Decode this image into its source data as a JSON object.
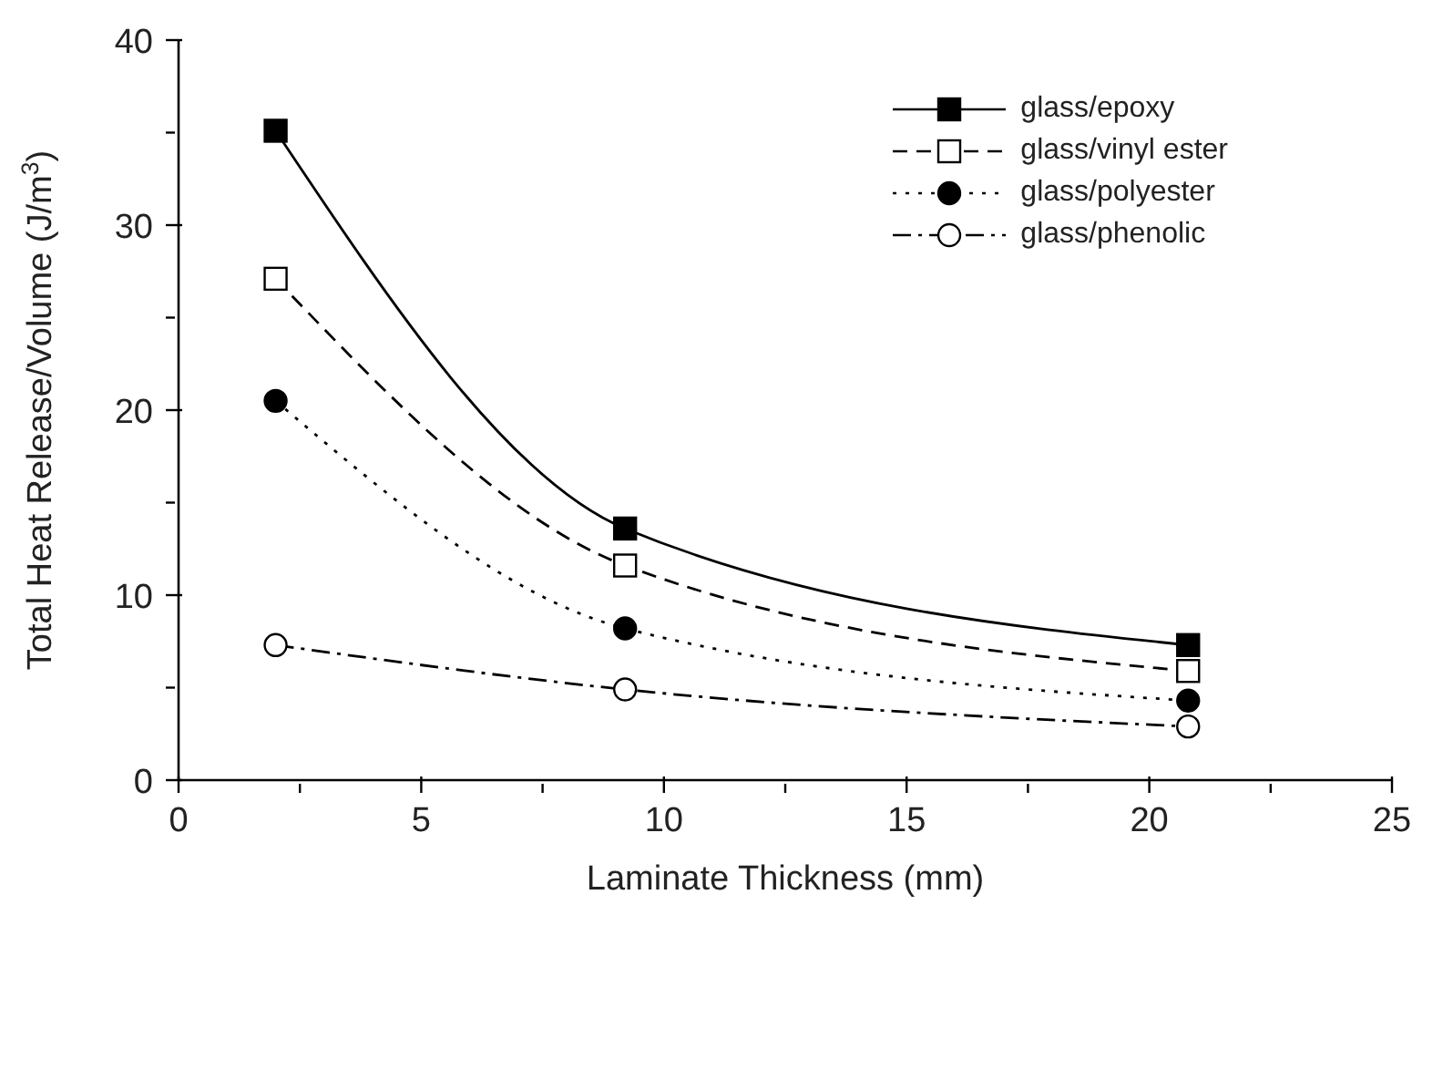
{
  "chart_data": {
    "type": "line",
    "xlabel": "Laminate Thickness (mm)",
    "ylabel": "Total Heat Release/Volume (J/m$^{3}$)",
    "xlim": [
      0,
      25
    ],
    "ylim": [
      0,
      40
    ],
    "xticks": [
      0,
      {
        "value": 2.5,
        "label": null
      },
      5,
      {
        "value": 7.5,
        "label": null
      },
      10,
      {
        "value": 12.5,
        "label": null
      },
      15,
      {
        "value": 17.5,
        "label": null
      },
      20,
      {
        "value": 22.5,
        "label": null
      },
      25
    ],
    "yticks": [
      0,
      {
        "value": 5,
        "label": null
      },
      10,
      {
        "value": 15,
        "label": null
      },
      20,
      {
        "value": 25,
        "label": null
      },
      30,
      {
        "value": 35,
        "label": null
      },
      40
    ],
    "grid": false,
    "legend": "top right",
    "series": [
      {
        "name": "glass/epoxy",
        "color": "#000000",
        "x": [
          2.0,
          9.2,
          20.8
        ],
        "values": [
          35.1,
          13.6,
          7.3
        ],
        "marker": "square",
        "line_style": "solid"
      },
      {
        "name": "glass/vinyl ester",
        "color": "#000000",
        "x": [
          2.0,
          9.2,
          20.8
        ],
        "values": [
          27.1,
          11.6,
          5.9
        ],
        "marker": "square-open",
        "line_style": "dashed"
      },
      {
        "name": "glass/polyester",
        "color": "#000000",
        "x": [
          2.0,
          9.2,
          20.8
        ],
        "values": [
          20.5,
          8.2,
          4.3
        ],
        "marker": "circle",
        "line_style": "dotted"
      },
      {
        "name": "glass/phenolic",
        "color": "#000000",
        "x": [
          2.0,
          9.2,
          20.8
        ],
        "values": [
          7.3,
          4.9,
          2.9
        ],
        "marker": "circle-open",
        "line_style": "dashdot"
      }
    ]
  }
}
